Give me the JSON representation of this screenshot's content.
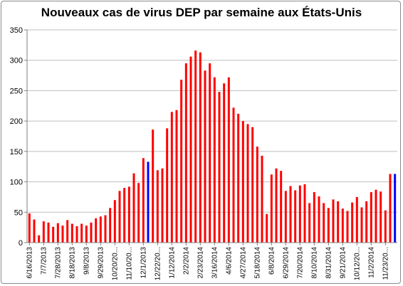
{
  "chart_data": {
    "type": "bar",
    "title": "Nouveaux cas de virus DEP par semaine aux États-Unis",
    "xlabel": "",
    "ylabel": "",
    "ylim": [
      0,
      350
    ],
    "yticks": [
      0,
      50,
      100,
      150,
      200,
      250,
      300,
      350
    ],
    "grid": "horizontal",
    "legend": "none",
    "colors": {
      "default": "#ff0000",
      "highlight": "#0000ff",
      "grid": "#bfbfbf"
    },
    "tick_labels": [
      {
        "index": 0,
        "label": "6/16/2013"
      },
      {
        "index": 3,
        "label": "7/7/2013"
      },
      {
        "index": 6,
        "label": "7/28/2013"
      },
      {
        "index": 9,
        "label": "8/18/2013"
      },
      {
        "index": 12,
        "label": "9/8/2013"
      },
      {
        "index": 15,
        "label": "9/29/2013"
      },
      {
        "index": 18,
        "label": "10/20/20..."
      },
      {
        "index": 21,
        "label": "11/10/20..."
      },
      {
        "index": 24,
        "label": "12/1/2013"
      },
      {
        "index": 27,
        "label": "12/22/20..."
      },
      {
        "index": 30,
        "label": "1/12/2014"
      },
      {
        "index": 33,
        "label": "2/2/2014"
      },
      {
        "index": 36,
        "label": "2/23/2014"
      },
      {
        "index": 39,
        "label": "3/16/2014"
      },
      {
        "index": 42,
        "label": "4/6/2014"
      },
      {
        "index": 45,
        "label": "4/27/2014"
      },
      {
        "index": 48,
        "label": "5/18/2014"
      },
      {
        "index": 51,
        "label": "6/8/2014"
      },
      {
        "index": 54,
        "label": "6/29/2014"
      },
      {
        "index": 57,
        "label": "7/20/2014"
      },
      {
        "index": 60,
        "label": "8/10/2014"
      },
      {
        "index": 63,
        "label": "8/31/2014"
      },
      {
        "index": 66,
        "label": "9/21/2014"
      },
      {
        "index": 69,
        "label": "10/12/20..."
      },
      {
        "index": 72,
        "label": "11/2/2014"
      },
      {
        "index": 75,
        "label": "11/23/20..."
      }
    ],
    "values": [
      48,
      38,
      12,
      35,
      33,
      26,
      32,
      28,
      37,
      31,
      27,
      31,
      28,
      33,
      40,
      43,
      45,
      57,
      70,
      85,
      90,
      92,
      114,
      98,
      139,
      133,
      186,
      119,
      122,
      188,
      215,
      218,
      268,
      295,
      306,
      316,
      313,
      283,
      295,
      272,
      248,
      262,
      272,
      222,
      212,
      200,
      195,
      190,
      158,
      143,
      47,
      112,
      122,
      118,
      85,
      93,
      86,
      94,
      96,
      65,
      83,
      76,
      65,
      57,
      71,
      68,
      56,
      52,
      66,
      75,
      58,
      68,
      83,
      87,
      84,
      53,
      113,
      113
    ],
    "highlight_indices": [
      25,
      77
    ]
  }
}
